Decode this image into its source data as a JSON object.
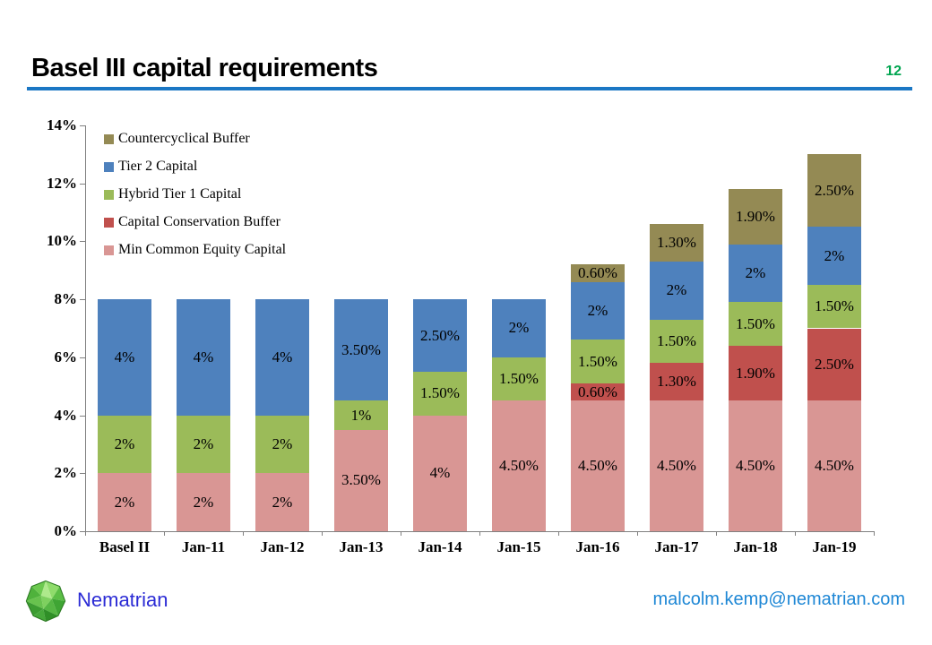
{
  "header": {
    "title": "Basel III capital requirements",
    "page_number": "12",
    "page_number_color": "#00A550",
    "rule_color": "#1B77C4"
  },
  "footer": {
    "brand": "Nematrian",
    "brand_color": "#2B2BD5",
    "email": "malcolm.kemp@nematrian.com",
    "email_color": "#1E87D5",
    "logo_icon": "green-polyhedron"
  },
  "chart_data": {
    "type": "bar",
    "stacked": true,
    "grid": false,
    "axis_color": "#808080",
    "ylim": [
      0,
      14
    ],
    "y_ticks": [
      "0%",
      "2%",
      "4%",
      "6%",
      "8%",
      "10%",
      "12%",
      "14%"
    ],
    "y_tick_step": 2,
    "legend_position": "top-left-inside",
    "legend_order": [
      "Countercyclical Buffer",
      "Tier 2 Capital",
      "Hybrid Tier 1 Capital",
      "Capital Conservation Buffer",
      "Min Common Equity Capital"
    ],
    "categories": [
      "Basel II",
      "Jan-11",
      "Jan-12",
      "Jan-13",
      "Jan-14",
      "Jan-15",
      "Jan-16",
      "Jan-17",
      "Jan-18",
      "Jan-19"
    ],
    "series": [
      {
        "name": "Min Common Equity Capital",
        "color": "#D99694",
        "values": [
          2,
          2,
          2,
          3.5,
          4,
          4.5,
          4.5,
          4.5,
          4.5,
          4.5
        ],
        "labels": [
          "2%",
          "2%",
          "2%",
          "3.50%",
          "4%",
          "4.50%",
          "4.50%",
          "4.50%",
          "4.50%",
          "4.50%"
        ]
      },
      {
        "name": "Capital Conservation Buffer",
        "color": "#C0504D",
        "values": [
          0,
          0,
          0,
          0,
          0,
          0,
          0.6,
          1.3,
          1.9,
          2.5
        ],
        "labels": [
          "",
          "",
          "",
          "",
          "",
          "",
          "0.60%",
          "1.30%",
          "1.90%",
          "2.50%"
        ]
      },
      {
        "name": "Hybrid Tier 1 Capital",
        "color": "#9BBB59",
        "values": [
          2,
          2,
          2,
          1,
          1.5,
          1.5,
          1.5,
          1.5,
          1.5,
          1.5
        ],
        "labels": [
          "2%",
          "2%",
          "2%",
          "1%",
          "1.50%",
          "1.50%",
          "1.50%",
          "1.50%",
          "1.50%",
          "1.50%"
        ]
      },
      {
        "name": "Tier 2 Capital",
        "color": "#4E81BD",
        "values": [
          4,
          4,
          4,
          3.5,
          2.5,
          2,
          2,
          2,
          2,
          2
        ],
        "labels": [
          "4%",
          "4%",
          "4%",
          "3.50%",
          "2.50%",
          "2%",
          "2%",
          "2%",
          "2%",
          "2%"
        ]
      },
      {
        "name": "Countercyclical Buffer",
        "color": "#948A54",
        "values": [
          0,
          0,
          0,
          0,
          0,
          0,
          0.6,
          1.3,
          1.9,
          2.5
        ],
        "labels": [
          "",
          "",
          "",
          "",
          "",
          "",
          "0.60%",
          "1.30%",
          "1.90%",
          "2.50%"
        ]
      }
    ]
  }
}
